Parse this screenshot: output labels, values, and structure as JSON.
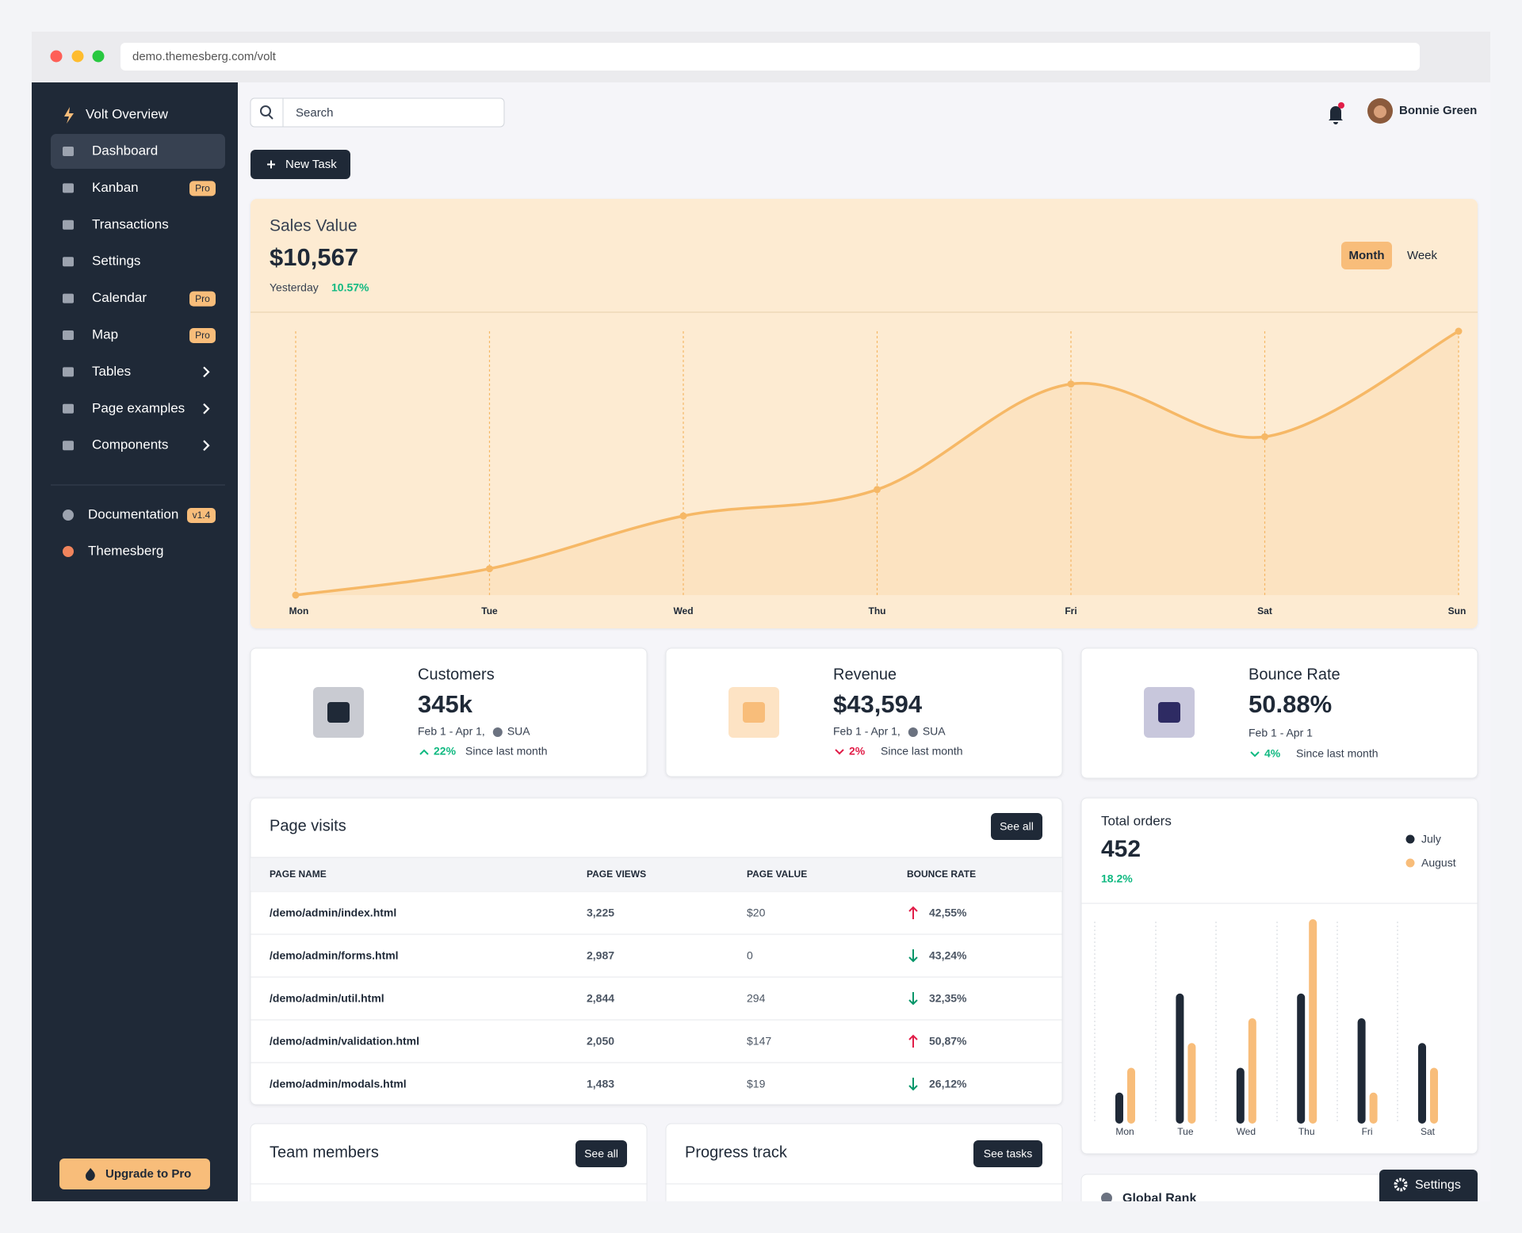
{
  "browser": {
    "url": "demo.themesberg.com/volt"
  },
  "sidebar": {
    "brand": "Volt Overview",
    "items": [
      {
        "label": "Dashboard",
        "active": true
      },
      {
        "label": "Kanban",
        "badge": "Pro"
      },
      {
        "label": "Transactions"
      },
      {
        "label": "Settings"
      },
      {
        "label": "Calendar",
        "badge": "Pro"
      },
      {
        "label": "Map",
        "badge": "Pro"
      },
      {
        "label": "Tables",
        "submenu": true
      },
      {
        "label": "Page examples",
        "submenu": true
      },
      {
        "label": "Components",
        "submenu": true
      }
    ],
    "secondary": [
      {
        "label": "Documentation",
        "badge": "v1.4"
      },
      {
        "label": "Themesberg"
      }
    ],
    "upgrade": "Upgrade to Pro"
  },
  "topbar": {
    "search_placeholder": "Search",
    "user": "Bonnie Green"
  },
  "new_task": "New Task",
  "sales": {
    "title": "Sales Value",
    "value": "$10,567",
    "period": "Yesterday",
    "change": "10.57%",
    "tabs": [
      "Month",
      "Week"
    ],
    "chart": {
      "type": "line",
      "categories": [
        "Mon",
        "Tue",
        "Wed",
        "Thu",
        "Fri",
        "Sat",
        "Sun"
      ],
      "values": [
        0,
        10,
        30,
        40,
        80,
        60,
        100
      ],
      "ylim": [
        0,
        100
      ],
      "color": "#f6b866"
    }
  },
  "stats": [
    {
      "title": "Customers",
      "value": "345k",
      "period": "Feb 1 - Apr 1,",
      "region": "SUA",
      "change": "22%",
      "direction": "up",
      "trend_color": "#10b981",
      "note": "Since last month"
    },
    {
      "title": "Revenue",
      "value": "$43,594",
      "period": "Feb 1 - Apr 1,",
      "region": "SUA",
      "change": "2%",
      "direction": "down",
      "trend_color": "#e11d48",
      "note": "Since last month"
    },
    {
      "title": "Bounce Rate",
      "value": "50.88%",
      "period": "Feb 1 - Apr 1",
      "change": "4%",
      "direction": "down",
      "trend_color": "#10b981",
      "note": "Since last month"
    }
  ],
  "page_visits": {
    "title": "Page visits",
    "button": "See all",
    "columns": [
      "PAGE NAME",
      "PAGE VIEWS",
      "PAGE VALUE",
      "BOUNCE RATE"
    ],
    "rows": [
      [
        "/demo/admin/index.html",
        "3,225",
        "$20",
        "42,55%"
      ],
      [
        "/demo/admin/forms.html",
        "2,987",
        "0",
        "43,24%"
      ],
      [
        "/demo/admin/util.html",
        "2,844",
        "294",
        "32,35%"
      ],
      [
        "/demo/admin/validation.html",
        "2,050",
        "$147",
        "50,87%"
      ],
      [
        "/demo/admin/modals.html",
        "1,483",
        "$19",
        "26,12%"
      ]
    ],
    "trends": [
      "up",
      "down",
      "down",
      "up",
      "down"
    ],
    "trend_colors": {
      "up": "#e11d48",
      "down": "#059669"
    }
  },
  "total_orders": {
    "title": "Total orders",
    "value": "452",
    "change": "18.2%",
    "chart": {
      "type": "bar",
      "categories": [
        "Mon",
        "Tue",
        "Wed",
        "Thu",
        "Fri",
        "Sat"
      ],
      "series": [
        {
          "name": "July",
          "color": "#1f2937",
          "values": [
            1,
            5,
            2,
            5,
            4,
            3
          ]
        },
        {
          "name": "August",
          "color": "#f8bd7a",
          "values": [
            2,
            3,
            4,
            8,
            1,
            2
          ]
        }
      ],
      "ylim": [
        0,
        8
      ]
    }
  },
  "team_members": {
    "title": "Team members",
    "button": "See all"
  },
  "progress_track": {
    "title": "Progress track",
    "button": "See tasks"
  },
  "global_rank": {
    "title": "Global Rank"
  },
  "settings_button": "Settings"
}
